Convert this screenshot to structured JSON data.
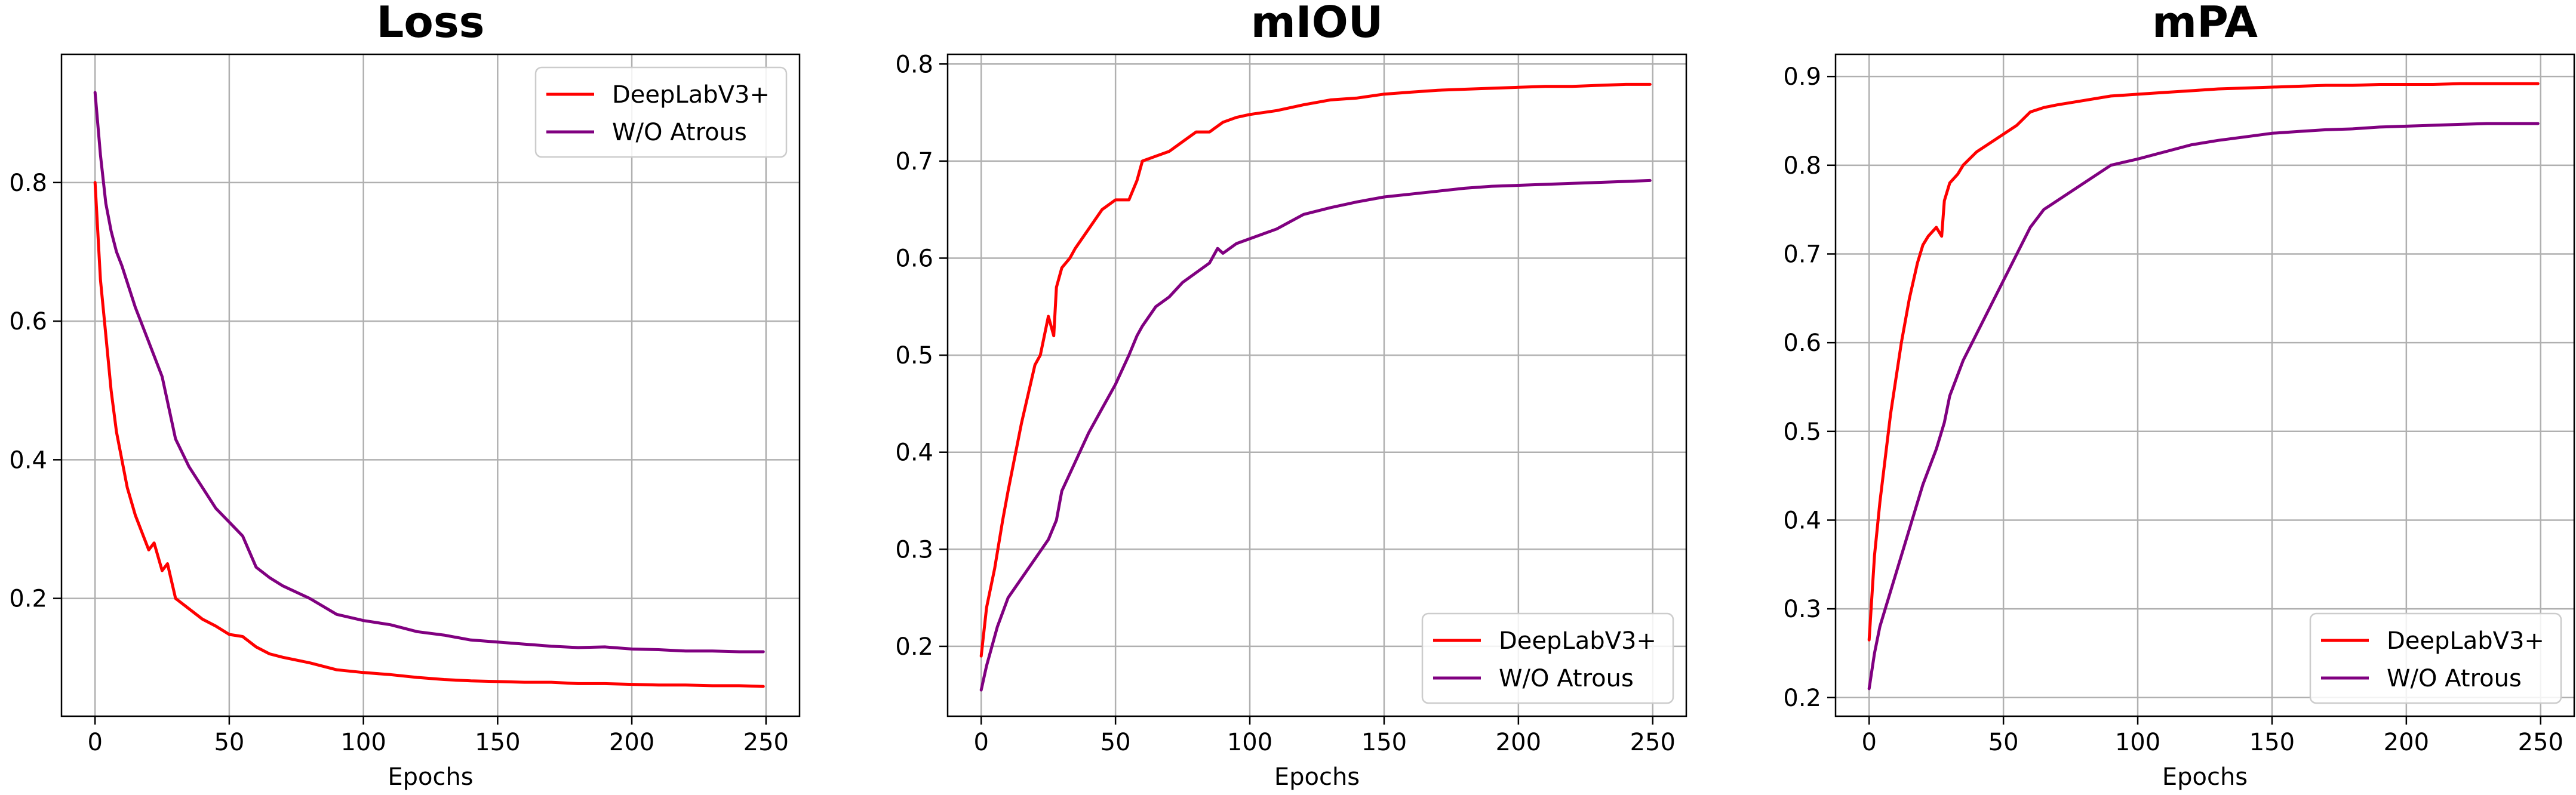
{
  "colors": {
    "deeplab": "#ff0000",
    "atrous": "#800080",
    "grid": "#b0b0b0"
  },
  "chart_data": [
    {
      "type": "line",
      "title": "Loss",
      "xlabel": "Epochs",
      "ylabel": "",
      "xlim": [
        -12.5,
        262.5
      ],
      "ylim": [
        0.03,
        0.985
      ],
      "xticks": [
        0,
        50,
        100,
        150,
        200,
        250
      ],
      "yticks": [
        0.2,
        0.4,
        0.6,
        0.8
      ],
      "grid": true,
      "legend": "top-right",
      "series": [
        {
          "name": "DeepLabV3+",
          "color": "#ff0000",
          "x": [
            0,
            2,
            4,
            6,
            8,
            10,
            12,
            15,
            18,
            20,
            22,
            25,
            27,
            30,
            35,
            40,
            45,
            50,
            55,
            60,
            65,
            70,
            80,
            90,
            100,
            110,
            120,
            130,
            140,
            150,
            160,
            170,
            180,
            190,
            200,
            210,
            220,
            230,
            240,
            249
          ],
          "y": [
            0.8,
            0.66,
            0.58,
            0.5,
            0.44,
            0.4,
            0.36,
            0.32,
            0.29,
            0.27,
            0.28,
            0.24,
            0.25,
            0.2,
            0.185,
            0.17,
            0.16,
            0.148,
            0.145,
            0.13,
            0.12,
            0.115,
            0.107,
            0.097,
            0.093,
            0.09,
            0.086,
            0.083,
            0.081,
            0.08,
            0.079,
            0.079,
            0.077,
            0.077,
            0.076,
            0.075,
            0.075,
            0.074,
            0.074,
            0.073
          ]
        },
        {
          "name": "W/O Atrous",
          "color": "#800080",
          "x": [
            0,
            2,
            4,
            6,
            8,
            10,
            15,
            20,
            25,
            30,
            35,
            40,
            45,
            50,
            55,
            60,
            65,
            70,
            80,
            90,
            100,
            110,
            120,
            130,
            140,
            150,
            160,
            170,
            180,
            190,
            200,
            210,
            220,
            230,
            240,
            249
          ],
          "y": [
            0.93,
            0.84,
            0.77,
            0.73,
            0.7,
            0.68,
            0.62,
            0.57,
            0.52,
            0.43,
            0.39,
            0.36,
            0.33,
            0.31,
            0.29,
            0.245,
            0.23,
            0.218,
            0.2,
            0.177,
            0.168,
            0.162,
            0.152,
            0.147,
            0.14,
            0.137,
            0.134,
            0.131,
            0.129,
            0.13,
            0.127,
            0.126,
            0.124,
            0.124,
            0.123,
            0.123
          ]
        }
      ]
    },
    {
      "type": "line",
      "title": "mIOU",
      "xlabel": "Epochs",
      "ylabel": "",
      "xlim": [
        -12.5,
        262.5
      ],
      "ylim": [
        0.128,
        0.81
      ],
      "xticks": [
        0,
        50,
        100,
        150,
        200,
        250
      ],
      "yticks": [
        0.2,
        0.3,
        0.4,
        0.5,
        0.6,
        0.7,
        0.8
      ],
      "grid": true,
      "legend": "bottom-right",
      "series": [
        {
          "name": "DeepLabV3+",
          "color": "#ff0000",
          "x": [
            0,
            2,
            5,
            8,
            10,
            15,
            20,
            22,
            25,
            27,
            28,
            30,
            33,
            35,
            40,
            45,
            50,
            55,
            58,
            60,
            65,
            70,
            75,
            80,
            85,
            90,
            95,
            100,
            110,
            120,
            130,
            140,
            150,
            160,
            170,
            180,
            190,
            200,
            210,
            220,
            230,
            240,
            249
          ],
          "y": [
            0.19,
            0.24,
            0.28,
            0.33,
            0.36,
            0.43,
            0.49,
            0.5,
            0.54,
            0.52,
            0.57,
            0.59,
            0.6,
            0.61,
            0.63,
            0.65,
            0.66,
            0.66,
            0.68,
            0.7,
            0.705,
            0.71,
            0.72,
            0.73,
            0.73,
            0.74,
            0.745,
            0.748,
            0.752,
            0.758,
            0.763,
            0.765,
            0.769,
            0.771,
            0.773,
            0.774,
            0.775,
            0.776,
            0.777,
            0.777,
            0.778,
            0.779,
            0.779
          ]
        },
        {
          "name": "W/O Atrous",
          "color": "#800080",
          "x": [
            0,
            2,
            4,
            6,
            8,
            10,
            15,
            20,
            25,
            28,
            30,
            35,
            40,
            45,
            50,
            55,
            58,
            60,
            65,
            70,
            75,
            80,
            85,
            88,
            90,
            95,
            100,
            110,
            120,
            130,
            140,
            150,
            160,
            170,
            180,
            190,
            200,
            210,
            220,
            230,
            240,
            249
          ],
          "y": [
            0.155,
            0.18,
            0.2,
            0.22,
            0.235,
            0.25,
            0.27,
            0.29,
            0.31,
            0.33,
            0.36,
            0.39,
            0.42,
            0.445,
            0.47,
            0.5,
            0.52,
            0.53,
            0.55,
            0.56,
            0.575,
            0.585,
            0.595,
            0.61,
            0.605,
            0.615,
            0.62,
            0.63,
            0.645,
            0.652,
            0.658,
            0.663,
            0.666,
            0.669,
            0.672,
            0.674,
            0.675,
            0.676,
            0.677,
            0.678,
            0.679,
            0.68
          ]
        }
      ]
    },
    {
      "type": "line",
      "title": "mPA",
      "xlabel": "Epochs",
      "ylabel": "",
      "xlim": [
        -12.5,
        262.5
      ],
      "ylim": [
        0.179,
        0.925
      ],
      "xticks": [
        0,
        50,
        100,
        150,
        200,
        250
      ],
      "yticks": [
        0.2,
        0.3,
        0.4,
        0.5,
        0.6,
        0.7,
        0.8,
        0.9
      ],
      "grid": true,
      "legend": "bottom-right",
      "series": [
        {
          "name": "DeepLabV3+",
          "color": "#ff0000",
          "x": [
            0,
            2,
            4,
            6,
            8,
            10,
            12,
            15,
            18,
            20,
            22,
            25,
            27,
            28,
            30,
            33,
            35,
            40,
            45,
            50,
            55,
            60,
            65,
            70,
            80,
            90,
            100,
            110,
            120,
            130,
            140,
            150,
            160,
            170,
            180,
            190,
            200,
            210,
            220,
            230,
            240,
            249
          ],
          "y": [
            0.265,
            0.36,
            0.42,
            0.47,
            0.52,
            0.56,
            0.6,
            0.65,
            0.69,
            0.71,
            0.72,
            0.73,
            0.72,
            0.76,
            0.78,
            0.79,
            0.8,
            0.815,
            0.825,
            0.835,
            0.845,
            0.86,
            0.865,
            0.868,
            0.873,
            0.878,
            0.88,
            0.882,
            0.884,
            0.886,
            0.887,
            0.888,
            0.889,
            0.89,
            0.89,
            0.891,
            0.891,
            0.891,
            0.892,
            0.892,
            0.892,
            0.892
          ]
        },
        {
          "name": "W/O Atrous",
          "color": "#800080",
          "x": [
            0,
            2,
            4,
            6,
            8,
            10,
            15,
            20,
            25,
            28,
            30,
            35,
            40,
            45,
            50,
            55,
            60,
            65,
            70,
            80,
            90,
            100,
            110,
            120,
            130,
            140,
            150,
            160,
            170,
            180,
            190,
            200,
            210,
            220,
            230,
            240,
            249
          ],
          "y": [
            0.21,
            0.25,
            0.28,
            0.3,
            0.32,
            0.34,
            0.39,
            0.44,
            0.48,
            0.51,
            0.54,
            0.58,
            0.61,
            0.64,
            0.67,
            0.7,
            0.73,
            0.75,
            0.76,
            0.78,
            0.8,
            0.807,
            0.815,
            0.823,
            0.828,
            0.832,
            0.836,
            0.838,
            0.84,
            0.841,
            0.843,
            0.844,
            0.845,
            0.846,
            0.847,
            0.847,
            0.847
          ]
        }
      ]
    }
  ]
}
